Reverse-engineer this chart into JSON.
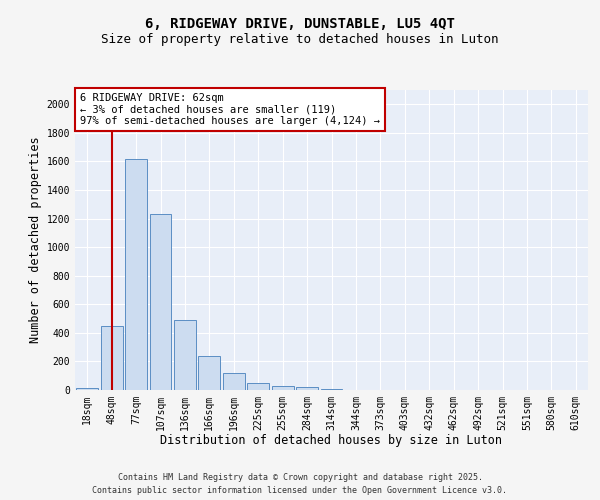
{
  "title_line1": "6, RIDGEWAY DRIVE, DUNSTABLE, LU5 4QT",
  "title_line2": "Size of property relative to detached houses in Luton",
  "xlabel": "Distribution of detached houses by size in Luton",
  "ylabel": "Number of detached properties",
  "categories": [
    "18sqm",
    "48sqm",
    "77sqm",
    "107sqm",
    "136sqm",
    "166sqm",
    "196sqm",
    "225sqm",
    "255sqm",
    "284sqm",
    "314sqm",
    "344sqm",
    "373sqm",
    "403sqm",
    "432sqm",
    "462sqm",
    "492sqm",
    "521sqm",
    "551sqm",
    "580sqm",
    "610sqm"
  ],
  "values": [
    15,
    450,
    1620,
    1230,
    490,
    240,
    120,
    50,
    30,
    20,
    5,
    0,
    0,
    0,
    0,
    0,
    0,
    0,
    0,
    0,
    0
  ],
  "bar_color": "#ccdcf0",
  "bar_edge_color": "#5b8ec4",
  "vline_color": "#c00000",
  "vline_position": 1.5,
  "annotation_box_text": "6 RIDGEWAY DRIVE: 62sqm\n← 3% of detached houses are smaller (119)\n97% of semi-detached houses are larger (4,124) →",
  "annotation_fc": "white",
  "annotation_ec": "#c00000",
  "ylim": [
    0,
    2100
  ],
  "yticks": [
    0,
    200,
    400,
    600,
    800,
    1000,
    1200,
    1400,
    1600,
    1800,
    2000
  ],
  "footnote1": "Contains HM Land Registry data © Crown copyright and database right 2025.",
  "footnote2": "Contains public sector information licensed under the Open Government Licence v3.0.",
  "bg_color": "#e8eef8",
  "grid_color": "#ffffff",
  "fig_bg_color": "#f5f5f5",
  "title_fontsize": 10,
  "subtitle_fontsize": 9,
  "axis_label_fontsize": 8.5,
  "tick_fontsize": 7,
  "annotation_fontsize": 7.5,
  "footnote_fontsize": 6
}
